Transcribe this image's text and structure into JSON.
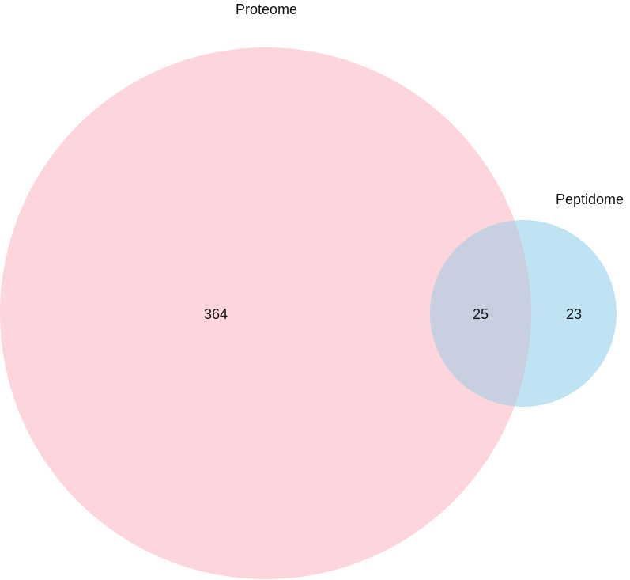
{
  "chart_data": {
    "type": "venn",
    "sets": [
      {
        "name": "Proteome",
        "color": "#fcd5dd"
      },
      {
        "name": "Peptidome",
        "color": "#bfe3f2"
      }
    ],
    "overlap_color": "#c7cfe0",
    "regions": {
      "proteome_only": "364",
      "intersection": "25",
      "peptidome_only": "23"
    }
  }
}
